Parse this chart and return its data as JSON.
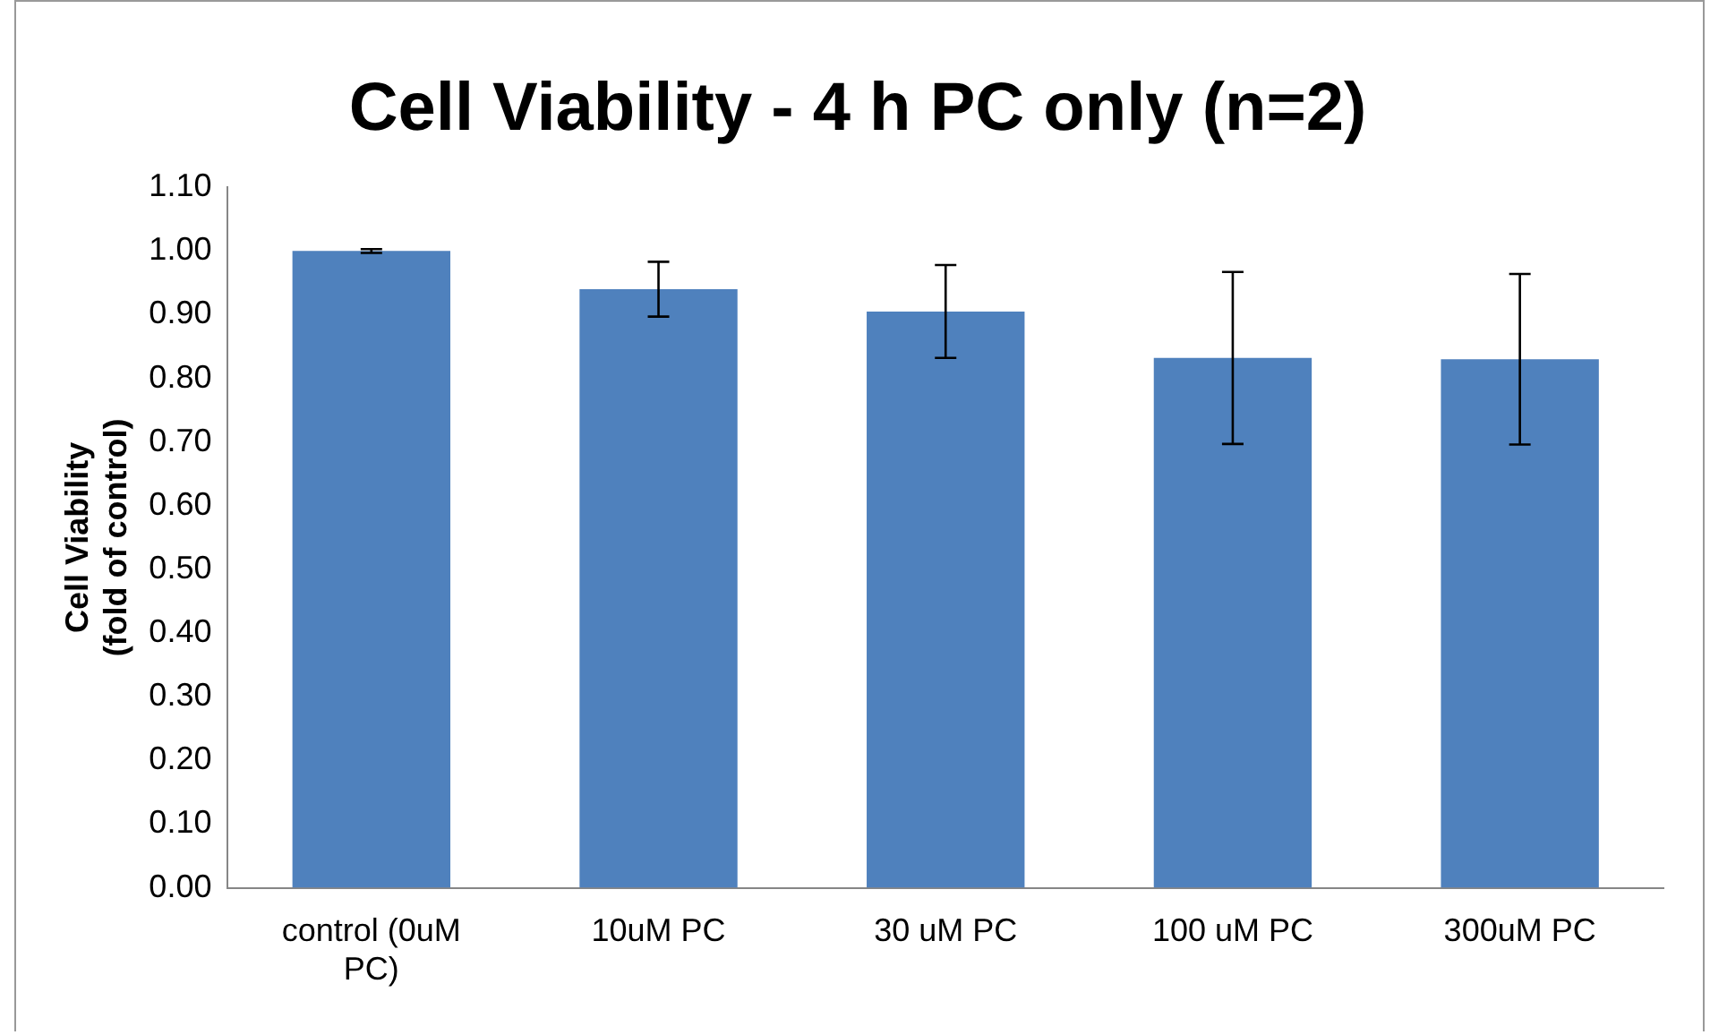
{
  "chart_data": {
    "type": "bar",
    "title": "Cell Viability - 4 h PC only (n=2)",
    "ylabel": "Cell Viability\n(fold of control)",
    "categories": [
      "control (0uM PC)",
      "10uM PC",
      "30 uM PC",
      "100 uM PC",
      "300uM PC"
    ],
    "values": [
      1.0,
      0.94,
      0.905,
      0.832,
      0.83
    ],
    "errors": [
      0.003,
      0.043,
      0.073,
      0.135,
      0.134
    ],
    "color": "#4f81bd",
    "ylim": [
      0,
      1.1
    ],
    "yticks": [
      {
        "value": 0,
        "label": "0.00"
      },
      {
        "value": 0.1,
        "label": "0.10"
      },
      {
        "value": 0.2,
        "label": "0.20"
      },
      {
        "value": 0.3,
        "label": "0.30"
      },
      {
        "value": 0.4,
        "label": "0.40"
      },
      {
        "value": 0.5,
        "label": "0.50"
      },
      {
        "value": 0.6,
        "label": "0.60"
      },
      {
        "value": 0.7,
        "label": "0.70"
      },
      {
        "value": 0.8,
        "label": "0.80"
      },
      {
        "value": 0.9,
        "label": "0.90"
      },
      {
        "value": 1.0,
        "label": "1.00"
      },
      {
        "value": 1.1,
        "label": "1.10"
      }
    ],
    "grid": false,
    "legend": false
  }
}
